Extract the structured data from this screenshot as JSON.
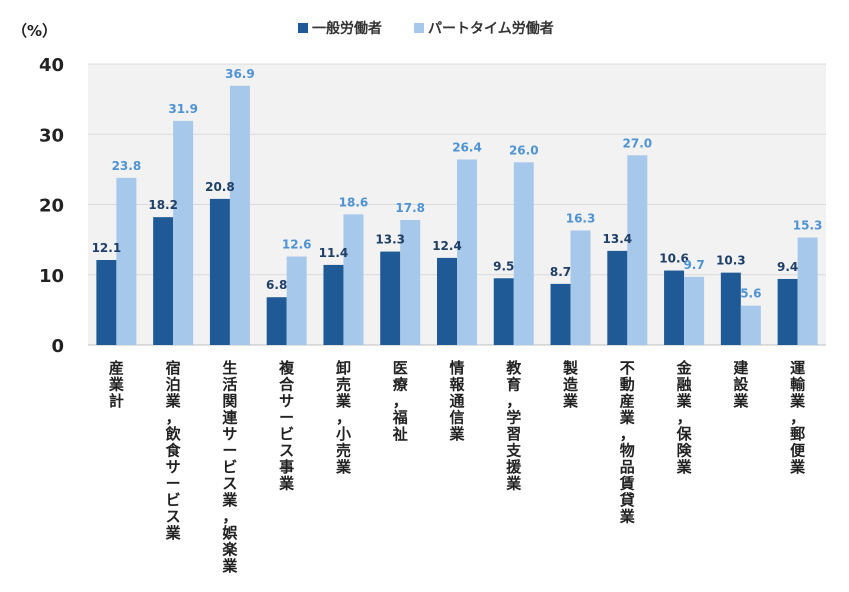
{
  "chart_data": {
    "type": "bar",
    "ylabel": "（%）",
    "ylim": [
      0,
      40
    ],
    "yticks": [
      0,
      10,
      20,
      30,
      40
    ],
    "grid": true,
    "legend_position": "top-center",
    "categories": [
      "産業計",
      "宿泊業，飲食サービス業",
      "生活関連サービス業，娯楽業",
      "複合サービス事業",
      "卸売業，小売業",
      "医療，福祉",
      "情報通信業",
      "教育，学習支援業",
      "製造業",
      "不動産業，物品賃貸業",
      "金融業，保険業",
      "建設業",
      "運輸業，郵便業"
    ],
    "series": [
      {
        "name": "一般労働者",
        "color": "#1f5a96",
        "label_color": "#1f3f66",
        "values": [
          12.1,
          18.2,
          20.8,
          6.8,
          11.4,
          13.3,
          12.4,
          9.5,
          8.7,
          13.4,
          10.6,
          10.3,
          9.4
        ]
      },
      {
        "name": "パートタイム労働者",
        "color": "#a6c8eb",
        "label_color": "#4f93d3",
        "values": [
          23.8,
          31.9,
          36.9,
          12.6,
          18.6,
          17.8,
          26.4,
          26.0,
          16.3,
          27.0,
          9.7,
          5.6,
          15.3
        ]
      }
    ]
  }
}
